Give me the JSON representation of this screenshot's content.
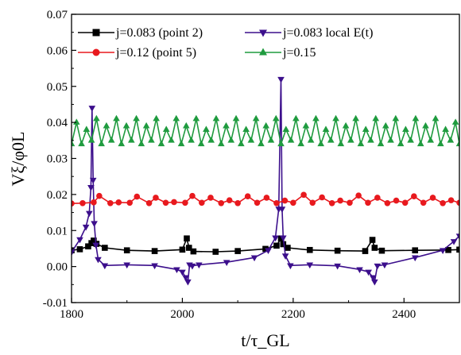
{
  "chart_data": {
    "type": "line",
    "title": "",
    "xlabel": "t/τ_GL",
    "ylabel": "Vξ/φ0L",
    "xlim": [
      1800,
      2500
    ],
    "ylim": [
      -0.01,
      0.07
    ],
    "x_ticks": [
      {
        "value": 1800,
        "label": "1800"
      },
      {
        "value": 2000,
        "label": "2000"
      },
      {
        "value": 2200,
        "label": "2200"
      },
      {
        "value": 2400,
        "label": "2400"
      }
    ],
    "y_ticks": [
      {
        "value": -0.01,
        "label": "-0.01"
      },
      {
        "value": 0.0,
        "label": "0.00"
      },
      {
        "value": 0.01,
        "label": "0.01"
      },
      {
        "value": 0.02,
        "label": "0.02"
      },
      {
        "value": 0.03,
        "label": "0.03"
      },
      {
        "value": 0.04,
        "label": "0.04"
      },
      {
        "value": 0.05,
        "label": "0.05"
      },
      {
        "value": 0.06,
        "label": "0.06"
      },
      {
        "value": 0.07,
        "label": "0.07"
      }
    ],
    "legend_placement": "top-left, two columns",
    "series": [
      {
        "name": "j=0.083 (point 2)",
        "color": "#000000",
        "marker": "square",
        "x": [
          1800,
          1815,
          1830,
          1836,
          1840,
          1845,
          1860,
          1900,
          1950,
          2000,
          2008,
          2012,
          2020,
          2060,
          2100,
          2150,
          2170,
          2178,
          2182,
          2190,
          2230,
          2280,
          2330,
          2343,
          2347,
          2360,
          2420,
          2480,
          2500
        ],
        "y": [
          0.0045,
          0.0048,
          0.0056,
          0.0065,
          0.0072,
          0.0063,
          0.0052,
          0.0045,
          0.0043,
          0.0047,
          0.0078,
          0.0052,
          0.0042,
          0.0041,
          0.0043,
          0.0049,
          0.0058,
          0.0078,
          0.0062,
          0.0052,
          0.0046,
          0.0044,
          0.0043,
          0.0074,
          0.0052,
          0.0044,
          0.0045,
          0.0046,
          0.0047
        ]
      },
      {
        "name": "j=0.083 local E(t)",
        "color": "#3c0f8c",
        "marker": "triangle-down",
        "x": [
          1800,
          1815,
          1826,
          1832,
          1835,
          1837,
          1839,
          1841,
          1844,
          1848,
          1860,
          1900,
          1950,
          1990,
          2000,
          2006,
          2010,
          2013,
          2018,
          2030,
          2080,
          2130,
          2155,
          2168,
          2174,
          2178,
          2180,
          2182,
          2186,
          2195,
          2230,
          2280,
          2320,
          2336,
          2344,
          2347,
          2352,
          2365,
          2420,
          2470,
          2490,
          2500
        ],
        "y": [
          0.004,
          0.0075,
          0.011,
          0.0148,
          0.022,
          0.044,
          0.024,
          0.012,
          0.006,
          0.002,
          0.0003,
          0.0005,
          0.0003,
          -0.0008,
          -0.0015,
          -0.003,
          -0.0042,
          0.0005,
          0.0002,
          0.0005,
          0.0012,
          0.0025,
          0.0045,
          0.008,
          0.016,
          0.052,
          0.016,
          0.008,
          0.003,
          0.0003,
          0.0005,
          0.0002,
          -0.0008,
          -0.0015,
          -0.003,
          -0.0042,
          0.0002,
          0.0005,
          0.0025,
          0.0045,
          0.007,
          0.0085
        ]
      },
      {
        "name": "j=0.12 (point 5)",
        "color": "#e8191e",
        "marker": "circle",
        "x": [
          1800,
          1820,
          1840,
          1850,
          1870,
          1885,
          1905,
          1918,
          1940,
          1952,
          1970,
          1985,
          2005,
          2018,
          2035,
          2051,
          2070,
          2085,
          2100,
          2118,
          2135,
          2152,
          2170,
          2185,
          2200,
          2219,
          2235,
          2252,
          2270,
          2285,
          2302,
          2318,
          2335,
          2352,
          2370,
          2386,
          2402,
          2418,
          2435,
          2452,
          2470,
          2485,
          2500
        ],
        "y": [
          0.0175,
          0.0176,
          0.0178,
          0.0196,
          0.0176,
          0.0178,
          0.0177,
          0.0194,
          0.0176,
          0.0191,
          0.0177,
          0.0179,
          0.0177,
          0.0196,
          0.0177,
          0.0191,
          0.0176,
          0.0184,
          0.0176,
          0.0195,
          0.0177,
          0.0191,
          0.0176,
          0.0183,
          0.0177,
          0.0199,
          0.0177,
          0.0192,
          0.0176,
          0.0183,
          0.0177,
          0.0197,
          0.0177,
          0.0191,
          0.0176,
          0.0183,
          0.0177,
          0.0195,
          0.0177,
          0.0191,
          0.0176,
          0.0184,
          0.0177
        ]
      },
      {
        "name": "j=0.15",
        "color": "#1f9b3f",
        "marker": "triangle-up",
        "x": [
          1800,
          1809,
          1818,
          1827,
          1836,
          1845,
          1854,
          1863,
          1872,
          1881,
          1890,
          1899,
          1908,
          1917,
          1926,
          1935,
          1944,
          1953,
          1962,
          1971,
          1980,
          1989,
          1998,
          2007,
          2016,
          2025,
          2034,
          2043,
          2052,
          2061,
          2070,
          2079,
          2088,
          2097,
          2106,
          2115,
          2124,
          2133,
          2142,
          2151,
          2160,
          2169,
          2178,
          2187,
          2196,
          2205,
          2214,
          2223,
          2232,
          2241,
          2250,
          2259,
          2268,
          2277,
          2286,
          2295,
          2304,
          2313,
          2322,
          2331,
          2340,
          2349,
          2358,
          2367,
          2376,
          2385,
          2394,
          2403,
          2412,
          2421,
          2430,
          2439,
          2448,
          2457,
          2466,
          2475,
          2484,
          2493,
          2500
        ],
        "y": [
          0.034,
          0.04,
          0.034,
          0.038,
          0.035,
          0.041,
          0.034,
          0.039,
          0.035,
          0.041,
          0.034,
          0.039,
          0.035,
          0.041,
          0.034,
          0.039,
          0.035,
          0.041,
          0.034,
          0.038,
          0.035,
          0.041,
          0.034,
          0.039,
          0.035,
          0.041,
          0.034,
          0.038,
          0.035,
          0.041,
          0.034,
          0.039,
          0.035,
          0.041,
          0.034,
          0.038,
          0.035,
          0.041,
          0.034,
          0.039,
          0.035,
          0.041,
          0.034,
          0.038,
          0.035,
          0.041,
          0.034,
          0.039,
          0.035,
          0.041,
          0.034,
          0.038,
          0.035,
          0.041,
          0.034,
          0.039,
          0.035,
          0.041,
          0.034,
          0.038,
          0.035,
          0.041,
          0.034,
          0.039,
          0.035,
          0.041,
          0.034,
          0.038,
          0.035,
          0.041,
          0.034,
          0.039,
          0.035,
          0.041,
          0.034,
          0.038,
          0.035,
          0.04,
          0.034
        ]
      }
    ]
  }
}
